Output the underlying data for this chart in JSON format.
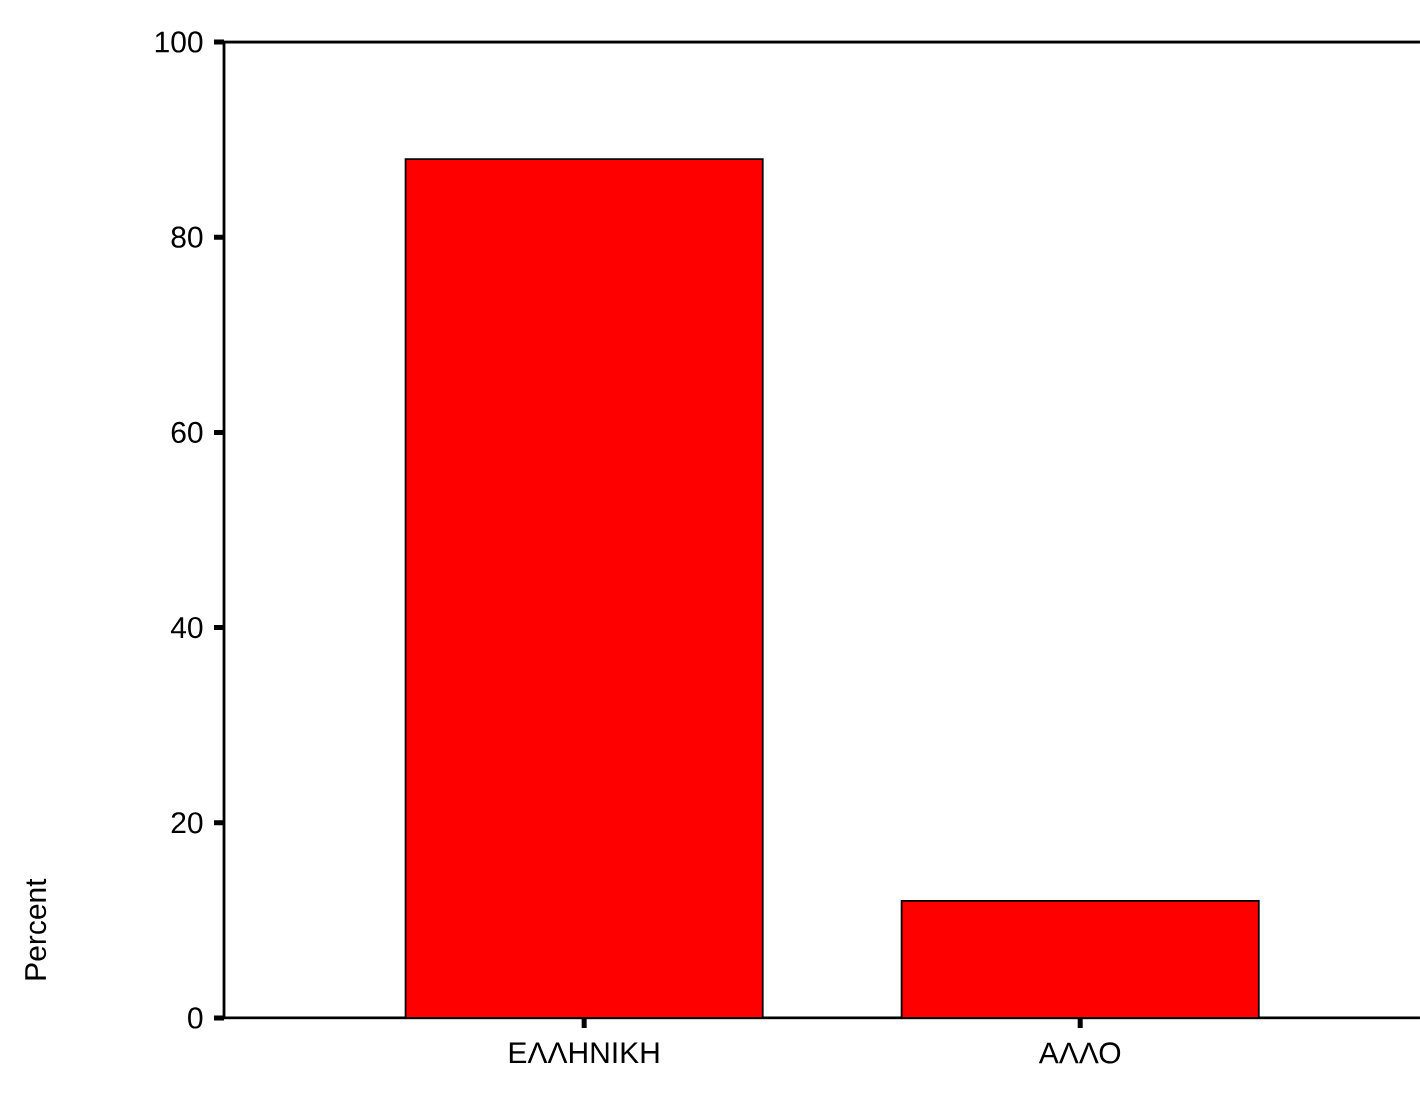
{
  "chart_data": {
    "type": "bar",
    "ylabel": "Percent",
    "categories": [
      "ΕΛΛΗΝΙΚΗ",
      "ΑΛΛΟ"
    ],
    "values": [
      88,
      12
    ],
    "color": "#ff0000",
    "ylim": [
      0,
      100
    ],
    "yticks": [
      0,
      20,
      40,
      60,
      80,
      100
    ]
  }
}
